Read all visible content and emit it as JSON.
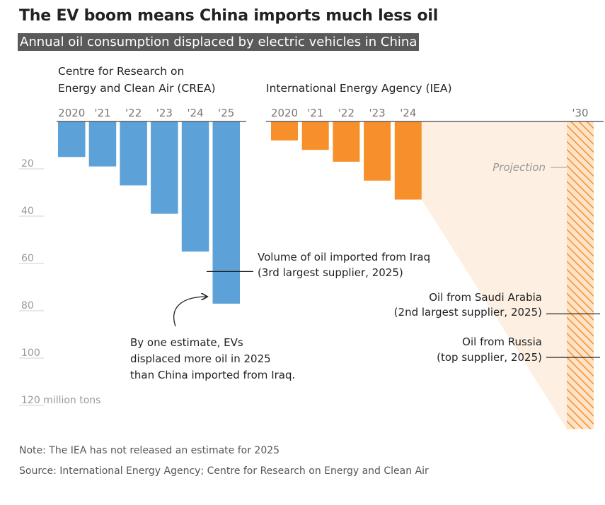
{
  "header": {
    "title": "The EV boom means China imports much less oil",
    "subtitle": "Annual oil consumption displaced by electric vehicles in China"
  },
  "colors": {
    "crea": "#5ca1d8",
    "iea": "#f7902b",
    "projection_fill": "#fdf0e2",
    "axis": "#444444",
    "tick_text": "#999999"
  },
  "chart_data": {
    "type": "bar",
    "orientation": "downward",
    "unit": "million tons",
    "ylim": [
      0,
      130
    ],
    "yticks": [
      {
        "value": 20,
        "label": "20"
      },
      {
        "value": 40,
        "label": "40"
      },
      {
        "value": 60,
        "label": "60"
      },
      {
        "value": 80,
        "label": "80"
      },
      {
        "value": 100,
        "label": "100"
      },
      {
        "value": 120,
        "label": "120 million tons"
      }
    ],
    "series": [
      {
        "name": "Centre for Research on Energy and Clean Air (CREA)",
        "name_lines": [
          "Centre for Research on",
          "Energy and Clean Air (CREA)"
        ],
        "categories": [
          "2020",
          "'21",
          "'22",
          "'23",
          "'24",
          "'25"
        ],
        "values": [
          15,
          19,
          27,
          39,
          55,
          77
        ]
      },
      {
        "name": "International Energy Agency (IEA)",
        "name_lines": [
          "International Energy Agency (IEA)"
        ],
        "categories": [
          "2020",
          "'21",
          "'22",
          "'23",
          "'24"
        ],
        "values": [
          8,
          12,
          17,
          25,
          33
        ]
      }
    ],
    "projection": {
      "category": "'30",
      "value": 130,
      "label": "Projection"
    },
    "reference_lines": [
      {
        "value": 64,
        "lines": [
          "Volume of oil imported from Iraq",
          "(3rd largest supplier, 2025)"
        ]
      },
      {
        "value": 81,
        "lines": [
          "Oil from Saudi Arabia",
          "(2nd largest supplier, 2025)"
        ]
      },
      {
        "value": 100,
        "lines": [
          "Oil from Russia",
          "(top supplier, 2025)"
        ]
      }
    ],
    "annotation": {
      "lines": [
        "By one estimate, EVs",
        "displaced more oil in 2025",
        "than China imported from Iraq."
      ]
    }
  },
  "footer": {
    "note": "Note: The IEA has not released an estimate for 2025",
    "source": "Source: International Energy Agency; Centre for Research on Energy and Clean Air"
  }
}
